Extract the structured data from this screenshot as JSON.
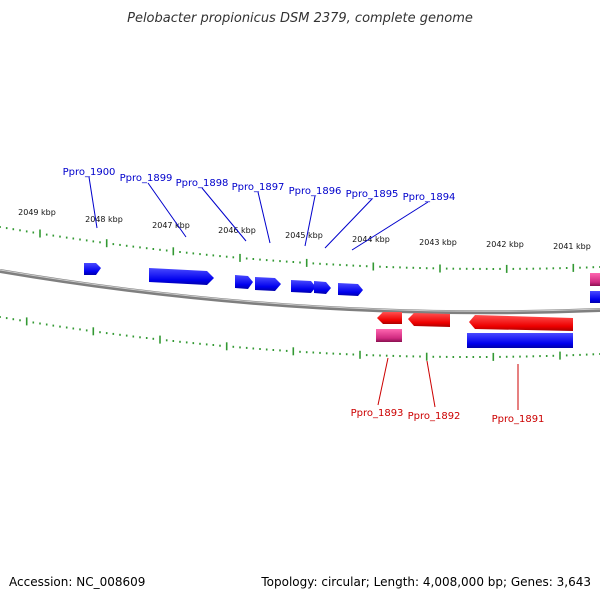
{
  "title": "Pelobacter propionicus DSM 2379, complete genome",
  "footer": {
    "accession": "Accession: NC_008609",
    "info": "Topology: circular; Length: 4,008,000 bp; Genes: 3,643"
  },
  "colors": {
    "forward": "#0000ee",
    "reverse": "#ee0000",
    "forward_label": "#0000cc",
    "reverse_label": "#cc0000",
    "rna": "#e0408a",
    "backbone": "#888888",
    "tick": "#339933"
  },
  "scale_labels": [
    "2049 kbp",
    "2048 kbp",
    "2047 kbp",
    "2046 kbp",
    "2045 kbp",
    "2044 kbp",
    "2043 kbp",
    "2042 kbp",
    "2041 kbp"
  ],
  "forward_genes": [
    "Ppro_1900",
    "Ppro_1899",
    "Ppro_1898",
    "Ppro_1897",
    "Ppro_1896",
    "Ppro_1895",
    "Ppro_1894"
  ],
  "reverse_genes": [
    "Ppro_1893",
    "Ppro_1892",
    "Ppro_1891"
  ]
}
